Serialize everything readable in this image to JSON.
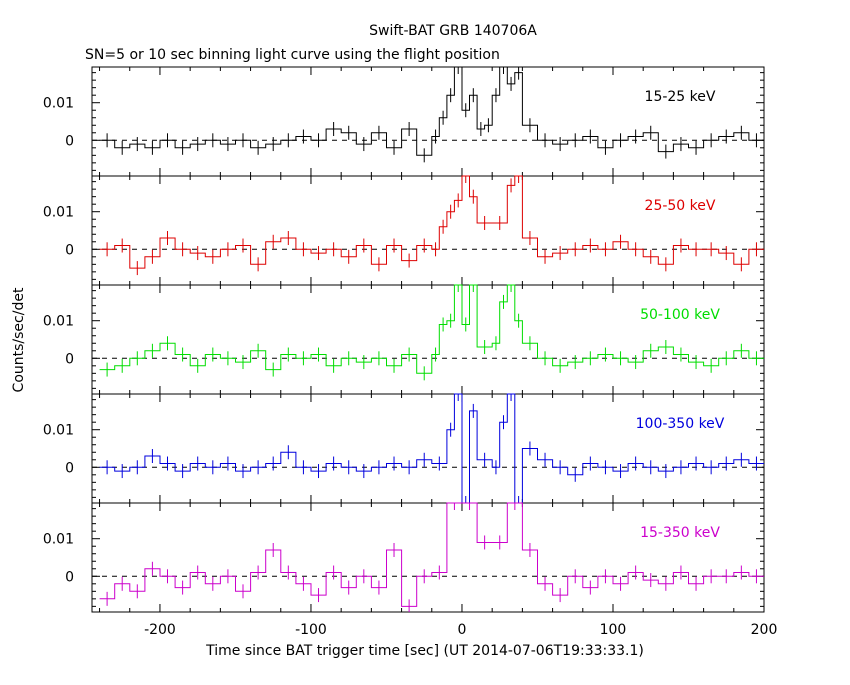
{
  "chart_data": {
    "type": "line",
    "title": "Swift-BAT GRB 140706A",
    "subtitle": "SN=5 or 10 sec binning light curve using the flight position",
    "xlabel": "Time since BAT trigger time [sec] (UT 2014-07-06T19:33:33.1)",
    "ylabel": "Counts/sec/det",
    "xlim": [
      -245,
      200
    ],
    "xticks": [
      -200,
      -100,
      0,
      100,
      200
    ],
    "ylim": [
      -0.0095,
      0.0195
    ],
    "yticks": [
      0,
      0.01
    ],
    "ytick_labels": [
      "0",
      "0.01"
    ],
    "panels": [
      {
        "name": "15-25 keV",
        "color": "#000000",
        "x": [
          -240,
          -230,
          -220,
          -210,
          -200,
          -190,
          -180,
          -170,
          -160,
          -150,
          -140,
          -130,
          -120,
          -110,
          -100,
          -90,
          -80,
          -70,
          -60,
          -50,
          -40,
          -30,
          -20,
          -15,
          -10,
          -5,
          0,
          5,
          10,
          15,
          20,
          25,
          30,
          35,
          40,
          50,
          60,
          70,
          80,
          90,
          100,
          110,
          120,
          130,
          140,
          150,
          160,
          170,
          180,
          190
        ],
        "y": [
          0.0,
          -0.002,
          -0.001,
          -0.002,
          0.0,
          -0.002,
          -0.001,
          0.0,
          -0.001,
          0.0,
          -0.002,
          -0.001,
          0.0,
          0.001,
          0.0,
          0.003,
          0.002,
          -0.001,
          0.002,
          -0.002,
          0.003,
          -0.004,
          0.001,
          0.006,
          0.012,
          0.02,
          0.008,
          0.012,
          0.003,
          0.004,
          0.012,
          0.02,
          0.015,
          0.018,
          0.004,
          0.0,
          -0.001,
          0.0,
          0.001,
          -0.002,
          0.0,
          0.001,
          0.002,
          -0.003,
          -0.001,
          -0.002,
          0.0,
          0.001,
          0.002,
          0.0
        ]
      },
      {
        "name": "25-50 keV",
        "color": "#dd0000",
        "x": [
          -240,
          -230,
          -220,
          -210,
          -200,
          -190,
          -180,
          -170,
          -160,
          -150,
          -140,
          -130,
          -120,
          -110,
          -100,
          -90,
          -80,
          -70,
          -60,
          -50,
          -40,
          -30,
          -20,
          -15,
          -10,
          -5,
          0,
          5,
          10,
          20,
          30,
          35,
          40,
          50,
          60,
          70,
          80,
          90,
          100,
          110,
          120,
          130,
          140,
          150,
          160,
          170,
          180,
          190
        ],
        "y": [
          0.0,
          0.001,
          -0.005,
          -0.002,
          0.003,
          0.0,
          -0.001,
          -0.002,
          0.0,
          0.001,
          -0.004,
          0.002,
          0.003,
          0.0,
          -0.001,
          0.0,
          -0.002,
          0.001,
          -0.004,
          0.001,
          -0.003,
          0.001,
          0.0,
          0.006,
          0.01,
          0.013,
          0.02,
          0.014,
          0.007,
          0.007,
          0.017,
          0.02,
          0.003,
          -0.002,
          -0.001,
          0.0,
          0.001,
          0.0,
          0.002,
          0.0,
          -0.002,
          -0.004,
          0.001,
          0.0,
          0.0,
          -0.001,
          -0.004,
          0.0
        ]
      },
      {
        "name": "50-100 keV",
        "color": "#00dd00",
        "x": [
          -240,
          -230,
          -220,
          -210,
          -200,
          -190,
          -180,
          -170,
          -160,
          -150,
          -140,
          -130,
          -120,
          -110,
          -100,
          -90,
          -80,
          -70,
          -60,
          -50,
          -40,
          -30,
          -20,
          -15,
          -10,
          -5,
          0,
          5,
          10,
          20,
          25,
          30,
          35,
          40,
          50,
          60,
          70,
          80,
          90,
          100,
          110,
          120,
          130,
          140,
          150,
          160,
          170,
          180,
          190
        ],
        "y": [
          -0.003,
          -0.002,
          0.0,
          0.002,
          0.004,
          0.001,
          -0.002,
          0.001,
          0.0,
          -0.001,
          0.002,
          -0.003,
          0.001,
          0.0,
          0.001,
          -0.002,
          0.0,
          -0.001,
          0.0,
          -0.002,
          0.001,
          -0.004,
          0.001,
          0.009,
          0.01,
          0.02,
          0.009,
          0.02,
          0.003,
          0.004,
          0.015,
          0.02,
          0.01,
          0.004,
          0.0,
          -0.002,
          -0.001,
          0.0,
          0.001,
          0.0,
          -0.001,
          0.002,
          0.003,
          0.001,
          -0.001,
          -0.002,
          0.0,
          0.002,
          0.0
        ]
      },
      {
        "name": "100-350 keV",
        "color": "#0000dd",
        "x": [
          -240,
          -230,
          -220,
          -210,
          -200,
          -190,
          -180,
          -170,
          -160,
          -150,
          -140,
          -130,
          -120,
          -110,
          -100,
          -90,
          -80,
          -70,
          -60,
          -50,
          -40,
          -30,
          -20,
          -10,
          -5,
          0,
          5,
          10,
          20,
          25,
          30,
          35,
          40,
          50,
          60,
          70,
          80,
          90,
          100,
          110,
          120,
          130,
          140,
          150,
          160,
          170,
          180,
          190
        ],
        "y": [
          0.0,
          -0.001,
          0.0,
          0.003,
          0.001,
          -0.001,
          0.001,
          0.0,
          0.001,
          -0.001,
          0.0,
          0.001,
          0.004,
          0.0,
          -0.001,
          0.001,
          0.0,
          -0.001,
          0.0,
          0.001,
          0.0,
          0.002,
          0.001,
          0.01,
          0.0195,
          -0.0095,
          0.015,
          0.002,
          0.0,
          0.012,
          0.0195,
          -0.0095,
          0.005,
          0.002,
          0.0,
          -0.002,
          0.001,
          0.0,
          -0.001,
          0.001,
          0.0,
          -0.001,
          0.0,
          0.001,
          0.0,
          0.001,
          0.002,
          0.001
        ]
      },
      {
        "name": "15-350 keV",
        "color": "#cc00cc",
        "x": [
          -240,
          -230,
          -220,
          -210,
          -200,
          -190,
          -180,
          -170,
          -160,
          -150,
          -140,
          -130,
          -120,
          -110,
          -100,
          -90,
          -80,
          -70,
          -60,
          -50,
          -40,
          -30,
          -20,
          -10,
          0,
          10,
          20,
          30,
          40,
          50,
          60,
          70,
          80,
          90,
          100,
          110,
          120,
          130,
          140,
          150,
          160,
          170,
          180,
          190
        ],
        "y": [
          -0.006,
          -0.002,
          -0.004,
          0.002,
          0.0,
          -0.003,
          0.001,
          -0.002,
          0.0,
          -0.004,
          0.001,
          0.007,
          0.001,
          -0.002,
          -0.005,
          0.001,
          -0.003,
          0.0,
          -0.003,
          0.007,
          -0.008,
          0.0,
          0.001,
          0.02,
          0.02,
          0.009,
          0.009,
          0.02,
          0.007,
          -0.002,
          -0.005,
          0.0,
          -0.003,
          0.0,
          -0.002,
          0.001,
          -0.001,
          -0.002,
          0.001,
          -0.002,
          0.0,
          0.0,
          0.001,
          0.0
        ]
      }
    ]
  }
}
